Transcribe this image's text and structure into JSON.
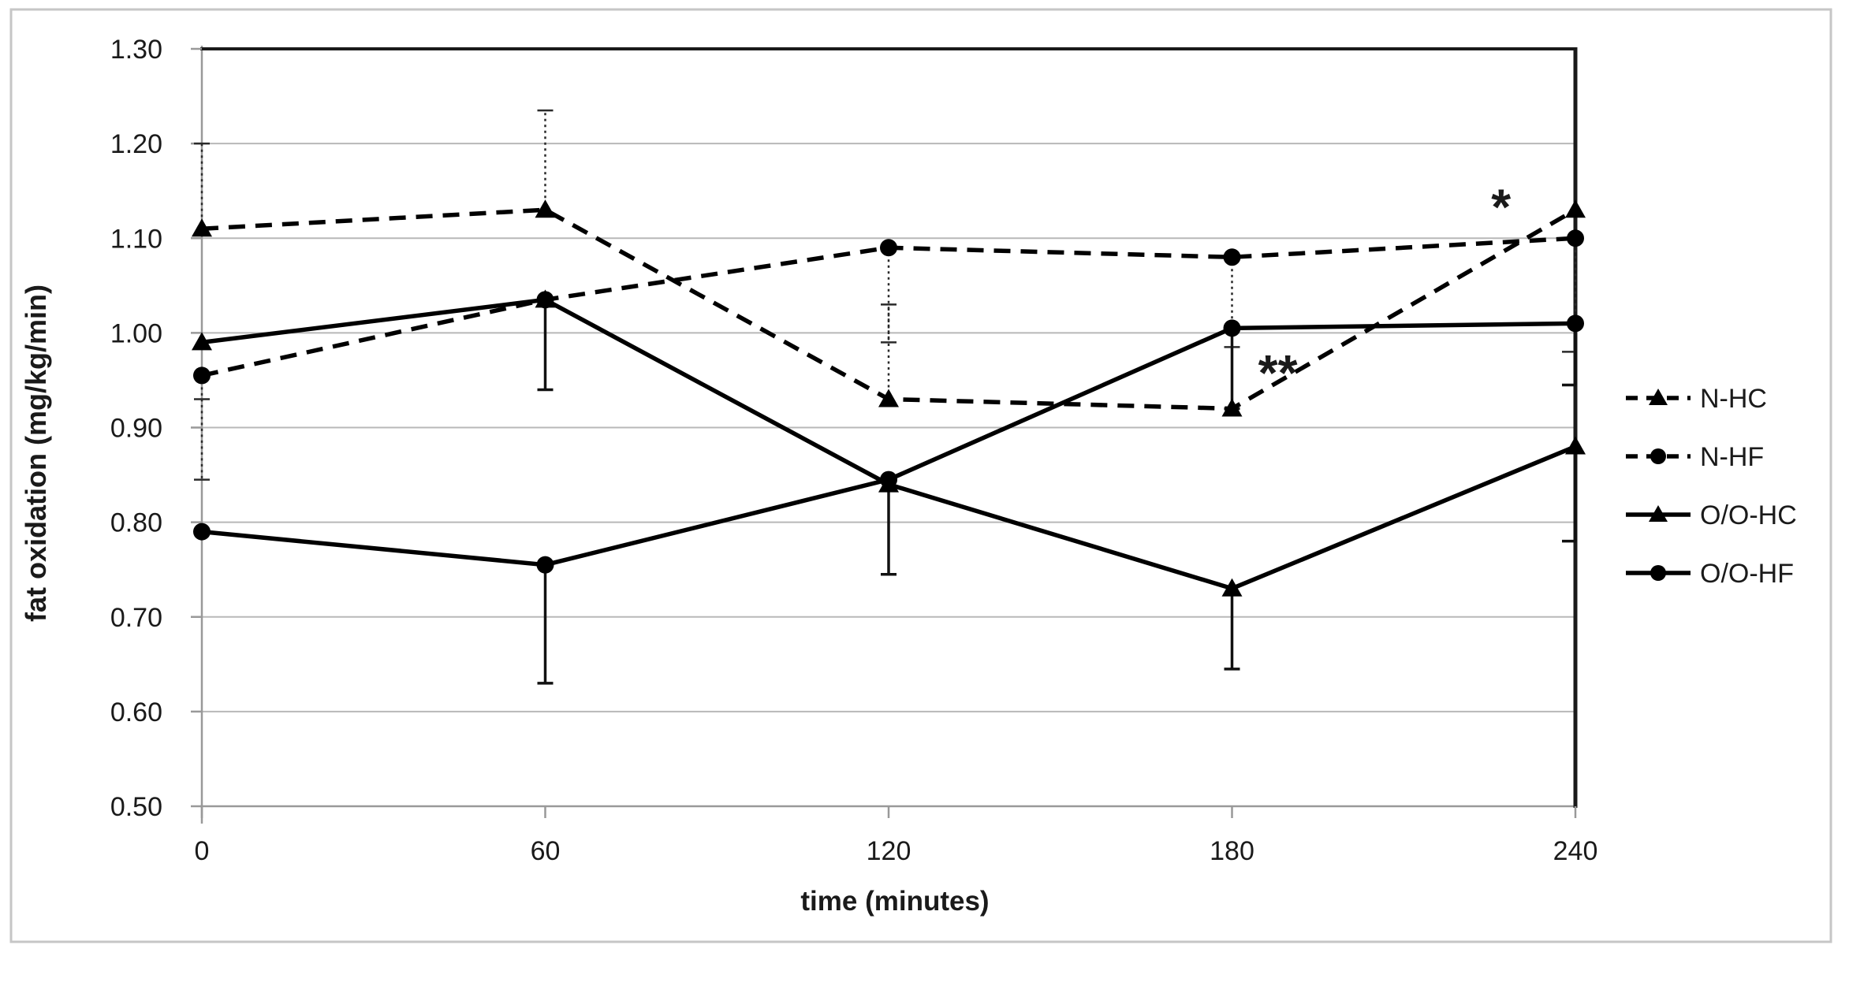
{
  "figure": {
    "background": "#ffffff",
    "frame_color": "#c6c6c6"
  },
  "chart_data": {
    "type": "line",
    "title": "",
    "xlabel": "time (minutes)",
    "ylabel": "fat oxidation (mg/kg/min)",
    "x": [
      0,
      60,
      120,
      180,
      240
    ],
    "x_tick_labels": [
      "0",
      "60",
      "120",
      "180",
      "240"
    ],
    "y_tick_values": [
      0.5,
      0.6,
      0.7,
      0.8,
      0.9,
      1.0,
      1.1,
      1.2,
      1.3
    ],
    "y_tick_labels": [
      "0.50",
      "0.60",
      "0.70",
      "0.80",
      "0.90",
      "1.00",
      "1.10",
      "1.20",
      "1.30"
    ],
    "ylim": [
      0.5,
      1.3
    ],
    "xlim": [
      0,
      240
    ],
    "grid": "horizontal",
    "legend_position": "right",
    "colors": {
      "line": "#000000",
      "grid": "#b8b8b8",
      "axis": "#999999",
      "border": "#1a1a1a",
      "text": "#1a1a1a"
    },
    "series": [
      {
        "name": "N-HC",
        "line": "dashed",
        "marker": "triangle",
        "values": [
          1.11,
          1.13,
          0.93,
          0.92,
          1.13
        ]
      },
      {
        "name": "N-HF",
        "line": "dashed",
        "marker": "circle",
        "values": [
          0.955,
          1.035,
          1.09,
          1.08,
          1.1
        ]
      },
      {
        "name": "O/O-HC",
        "line": "solid",
        "marker": "triangle",
        "values": [
          0.99,
          1.035,
          0.84,
          0.73,
          0.88
        ]
      },
      {
        "name": "O/O-HF",
        "line": "solid",
        "marker": "circle",
        "values": [
          0.79,
          0.755,
          0.845,
          1.005,
          1.01
        ]
      }
    ],
    "error_bars": [
      {
        "series": "N-HC",
        "x": 0,
        "from": 1.11,
        "to": 1.2,
        "style": "dotted"
      },
      {
        "series": "N-HC",
        "x": 60,
        "from": 1.13,
        "to": 1.235,
        "style": "dotted"
      },
      {
        "series": "N-HC",
        "x": 120,
        "from": 0.93,
        "to": 1.03,
        "style": "dotted"
      },
      {
        "series": "N-HF",
        "x": 0,
        "from": 0.955,
        "to": 0.845,
        "style": "dotted",
        "extra_cap": 0.93
      },
      {
        "series": "N-HF",
        "x": 120,
        "from": 1.09,
        "to": 0.99,
        "style": "dotted"
      },
      {
        "series": "N-HF",
        "x": 180,
        "from": 1.08,
        "to": 0.985,
        "style": "dotted"
      },
      {
        "series": "N-HF",
        "x": 240,
        "from": 1.1,
        "to": 0.98,
        "style": "dotted"
      },
      {
        "series": "O/O-HC",
        "x": 60,
        "from": 1.035,
        "to": 0.94,
        "style": "solid"
      },
      {
        "series": "O/O-HC",
        "x": 180,
        "from": 0.73,
        "to": 0.645,
        "style": "solid"
      },
      {
        "series": "O/O-HC",
        "x": 240,
        "from": 0.88,
        "to": 0.78,
        "style": "solid"
      },
      {
        "series": "O/O-HF",
        "x": 60,
        "from": 0.755,
        "to": 0.63,
        "style": "solid"
      },
      {
        "series": "O/O-HF",
        "x": 120,
        "from": 0.845,
        "to": 0.745,
        "style": "solid"
      },
      {
        "series": "O/O-HF",
        "x": 180,
        "from": 1.005,
        "to": 0.92,
        "style": "solid"
      },
      {
        "series": "O/O-HF",
        "x": 240,
        "from": 1.01,
        "to": 0.945,
        "style": "solid"
      }
    ],
    "annotations": [
      {
        "text": "*",
        "x": 227,
        "y": 1.133
      },
      {
        "text": "**",
        "x": 188,
        "y": 0.958
      }
    ]
  }
}
